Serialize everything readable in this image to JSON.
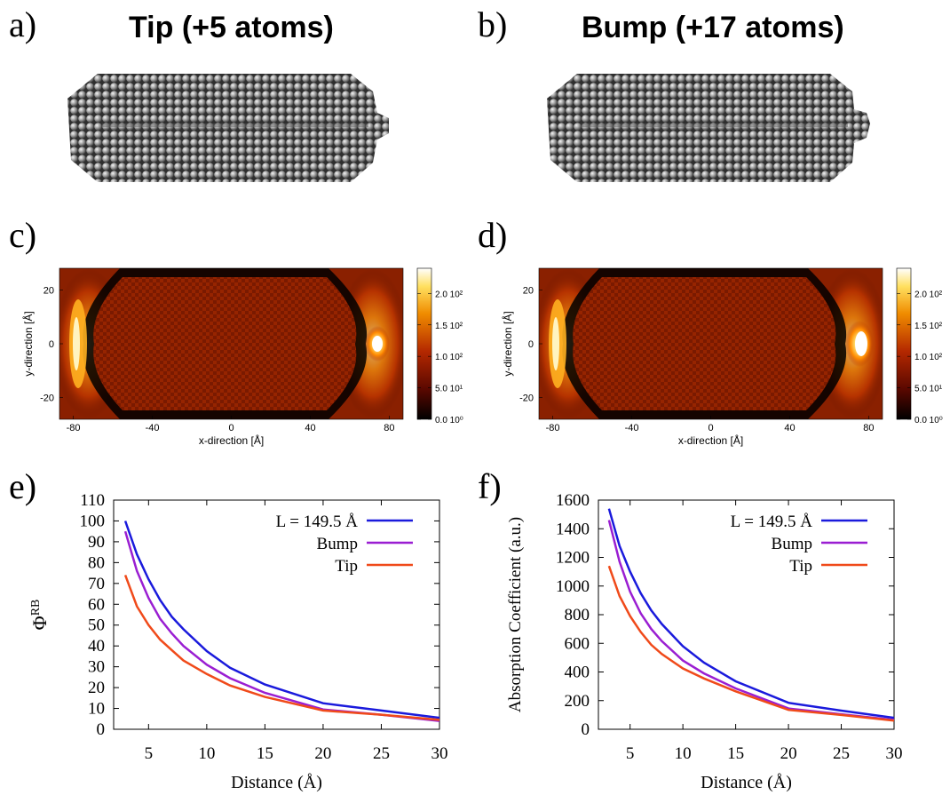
{
  "panels": {
    "a": {
      "letter": "a)",
      "title": "Tip (+5 atoms)"
    },
    "b": {
      "letter": "b)",
      "title": "Bump (+17 atoms)"
    },
    "c": {
      "letter": "c)"
    },
    "d": {
      "letter": "d)"
    },
    "e": {
      "letter": "e)"
    },
    "f": {
      "letter": "f)"
    }
  },
  "colors": {
    "series_L": "#1a1adc",
    "series_bump": "#9a1ed2",
    "series_tip": "#f04a1a",
    "atom": "#8c8c8c"
  },
  "chart_data": [
    {
      "id": "c",
      "type": "heatmap",
      "xlabel": "x-direction [Å]",
      "ylabel": "y-direction [Å]",
      "xlim": [
        -87,
        87
      ],
      "ylim": [
        -28,
        28
      ],
      "xticks": [
        "-80",
        "-40",
        "0",
        "40",
        "80"
      ],
      "yticks": [
        "20",
        "0",
        "-20"
      ],
      "colorbar": {
        "range": [
          0,
          240
        ],
        "ticks": [
          "2.0 10²",
          "1.5 10²",
          "1.0 10²",
          "5.0 10¹",
          "0.0 10⁰"
        ],
        "tick_values": [
          200,
          150,
          100,
          50,
          0
        ],
        "colormap": "black-red-orange-yellow-white"
      }
    },
    {
      "id": "d",
      "type": "heatmap",
      "xlabel": "x-direction [Å]",
      "ylabel": "y-direction [Å]",
      "xlim": [
        -87,
        87
      ],
      "ylim": [
        -28,
        28
      ],
      "xticks": [
        "-80",
        "-40",
        "0",
        "40",
        "80"
      ],
      "yticks": [
        "20",
        "0",
        "-20"
      ],
      "colorbar": {
        "range": [
          0,
          240
        ],
        "ticks": [
          "2.0 10²",
          "1.5 10²",
          "1.0 10²",
          "5.0 10¹",
          "0.0 10⁰"
        ],
        "tick_values": [
          200,
          150,
          100,
          50,
          0
        ],
        "colormap": "black-red-orange-yellow-white"
      }
    },
    {
      "id": "e",
      "type": "line",
      "xlabel": "Distance (Å)",
      "ylabel": "Φ",
      "ylabel_sup": "RB",
      "xlim": [
        2,
        30
      ],
      "ylim": [
        0,
        110
      ],
      "xticks": [
        5,
        10,
        15,
        20,
        25,
        30
      ],
      "yticks": [
        0,
        10,
        20,
        30,
        40,
        50,
        60,
        70,
        80,
        90,
        100,
        110
      ],
      "legend_position": "top-right",
      "x": [
        3,
        4,
        5,
        6,
        7,
        8,
        10,
        12,
        15,
        20,
        25,
        30
      ],
      "series": [
        {
          "name": "L = 149.5 Å",
          "values": [
            100,
            84,
            72,
            62,
            54,
            48,
            37.5,
            29.5,
            21.5,
            12.5,
            9,
            5.5
          ]
        },
        {
          "name": "Bump",
          "values": [
            95,
            76,
            63,
            53,
            46,
            40,
            31,
            24.5,
            17.5,
            9.5,
            7,
            4
          ]
        },
        {
          "name": "Tip",
          "values": [
            74,
            59,
            50,
            43,
            38,
            33,
            26.5,
            21,
            15.5,
            9,
            7,
            4.5
          ]
        }
      ]
    },
    {
      "id": "f",
      "type": "line",
      "xlabel": "Distance (Å)",
      "ylabel": "Absorption Coefficient (a.u.)",
      "xlim": [
        2,
        30
      ],
      "ylim": [
        0,
        1600
      ],
      "xticks": [
        5,
        10,
        15,
        20,
        25,
        30
      ],
      "yticks": [
        0,
        200,
        400,
        600,
        800,
        1000,
        1200,
        1400,
        1600
      ],
      "legend_position": "top-right",
      "x": [
        3,
        4,
        5,
        6,
        7,
        8,
        10,
        12,
        15,
        20,
        25,
        30
      ],
      "series": [
        {
          "name": "L = 149.5 Å",
          "values": [
            1540,
            1280,
            1100,
            950,
            830,
            735,
            580,
            465,
            335,
            185,
            130,
            80
          ]
        },
        {
          "name": "Bump",
          "values": [
            1460,
            1170,
            960,
            810,
            700,
            615,
            480,
            390,
            285,
            145,
            105,
            65
          ]
        },
        {
          "name": "Tip",
          "values": [
            1140,
            930,
            790,
            680,
            590,
            525,
            425,
            355,
            265,
            135,
            100,
            60
          ]
        }
      ]
    }
  ]
}
